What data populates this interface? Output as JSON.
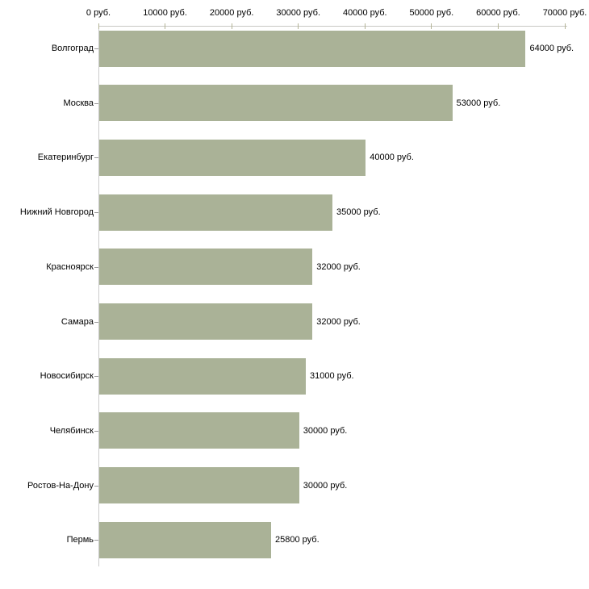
{
  "chart_data": {
    "type": "bar",
    "orientation": "horizontal",
    "title": "",
    "xlabel": "",
    "ylabel": "",
    "unit": "руб.",
    "categories": [
      "Волгоград",
      "Москва",
      "Екатеринбург",
      "Нижний Новгород",
      "Красноярск",
      "Самара",
      "Новосибирск",
      "Челябинск",
      "Ростов-На-Дону",
      "Пермь"
    ],
    "values": [
      64000,
      53000,
      40000,
      35000,
      32000,
      32000,
      31000,
      30000,
      30000,
      25800
    ],
    "value_labels": [
      "64000 руб.",
      "53000 руб.",
      "40000 руб.",
      "35000 руб.",
      "32000 руб.",
      "32000 руб.",
      "31000 руб.",
      "30000 руб.",
      "30000 руб.",
      "25800 руб."
    ],
    "x_ticks": [
      0,
      10000,
      20000,
      30000,
      40000,
      50000,
      60000,
      70000
    ],
    "x_tick_labels": [
      "0 руб.",
      "10000 руб.",
      "20000 руб.",
      "30000 руб.",
      "40000 руб.",
      "50000 руб.",
      "60000 руб.",
      "70000 руб."
    ],
    "xlim": [
      0,
      70000
    ],
    "grid": false,
    "legend": false,
    "axis_position": "top",
    "colors": {
      "bar": "#aab297",
      "x_axis_line": "#c8c8c3",
      "y_axis_line": "#cccccc",
      "x_tick": "#b3b396",
      "y_tick": "#999999",
      "text": "#000000",
      "background": "#ffffff"
    }
  }
}
